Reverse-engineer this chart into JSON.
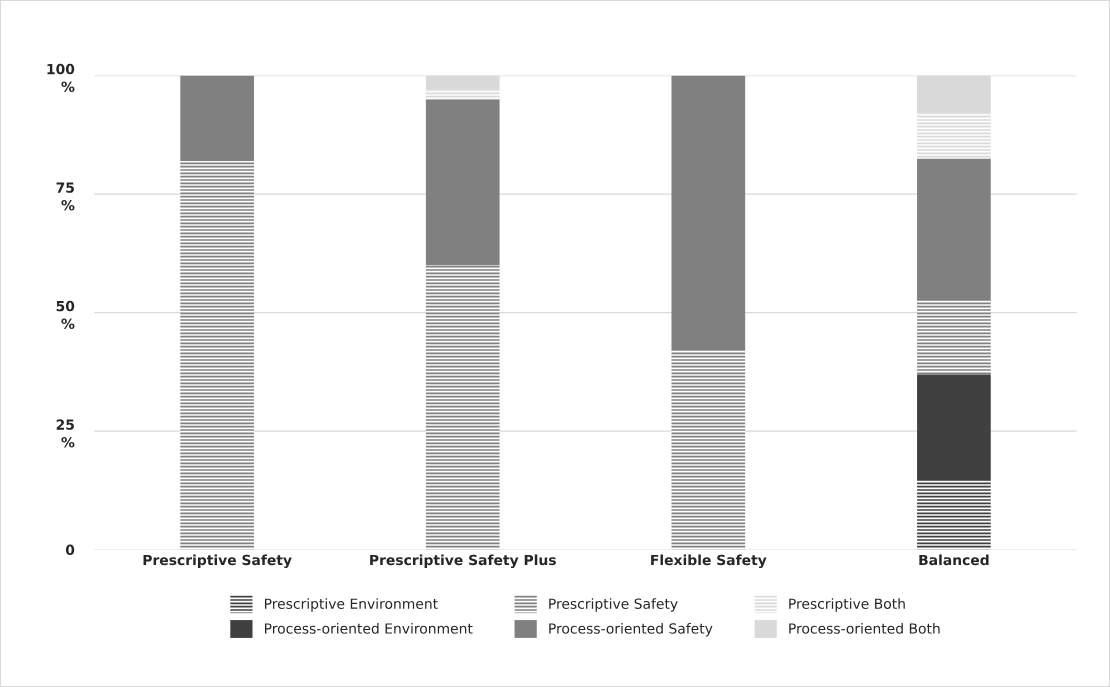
{
  "chart_data": {
    "type": "bar",
    "stacked": true,
    "categories": [
      "Prescriptive Safety",
      "Prescriptive Safety Plus",
      "Flexible Safety",
      "Balanced"
    ],
    "series": [
      {
        "name": "Prescriptive Environment",
        "color": "#404040",
        "values": [
          0,
          0,
          0,
          14.5
        ]
      },
      {
        "name": "Process-oriented Environment",
        "color": "#404040",
        "values": [
          0,
          0,
          0,
          22.5
        ]
      },
      {
        "name": "Prescriptive Safety",
        "color": "#808080",
        "values": [
          82,
          60,
          42,
          15.5
        ]
      },
      {
        "name": "Process-oriented Safety",
        "color": "#808080",
        "values": [
          18,
          35,
          58,
          30
        ]
      },
      {
        "name": "Prescriptive Both",
        "color": "#d9d9d9",
        "values": [
          0,
          2,
          0,
          9.5
        ]
      },
      {
        "name": "Process-oriented Both",
        "color": "#d9d9d9",
        "values": [
          0,
          3,
          0,
          8
        ]
      }
    ],
    "ylim": [
      0,
      100
    ],
    "yticks": [
      {
        "value": 0,
        "label": "0"
      },
      {
        "value": 25,
        "label": "25\n   %"
      },
      {
        "value": 50,
        "label": "50\n   %"
      },
      {
        "value": 75,
        "label": "75\n   %"
      },
      {
        "value": 100,
        "label": "100\n   %"
      }
    ],
    "grid": "y",
    "legend": "bottom"
  }
}
